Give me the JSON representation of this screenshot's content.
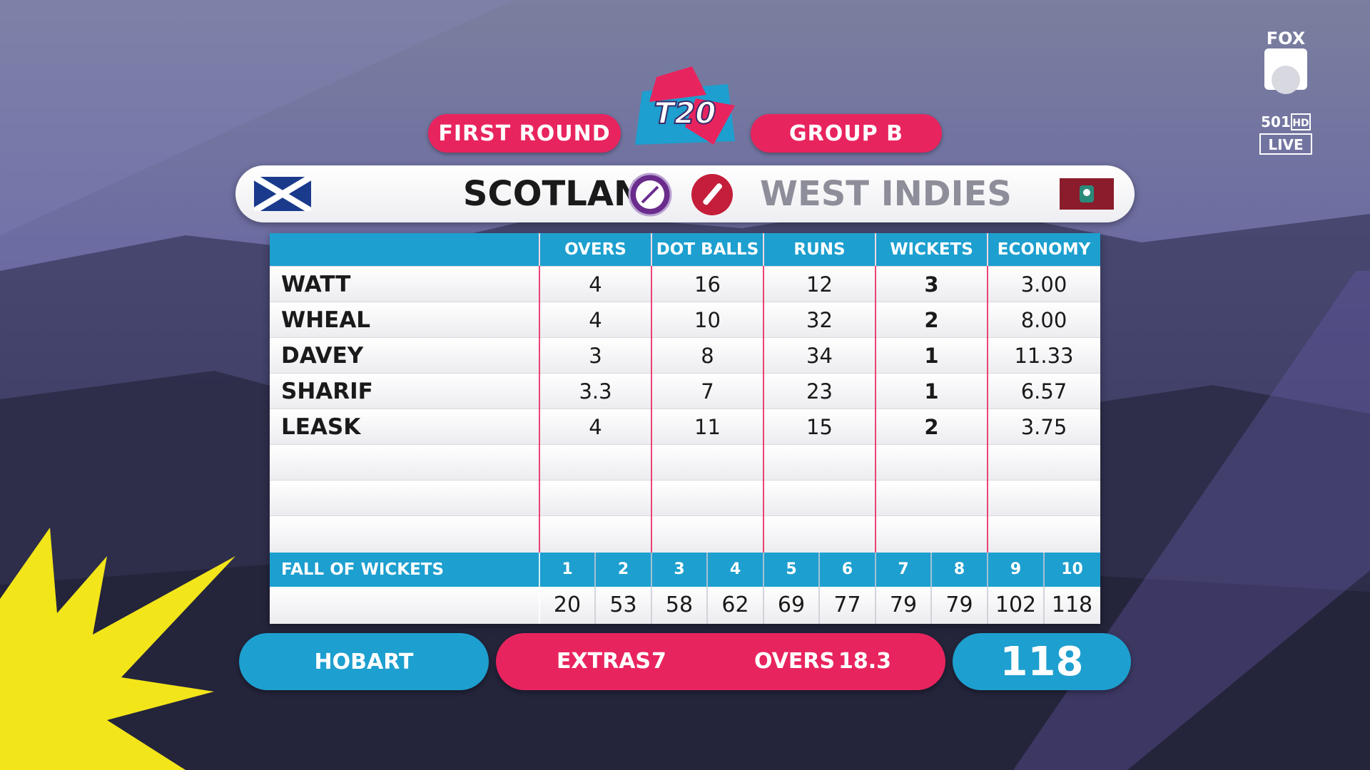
{
  "header": {
    "round": "FIRST ROUND",
    "group": "GROUP B",
    "logo_text": "T20"
  },
  "teams": {
    "home": "SCOTLAND",
    "away": "WEST INDIES"
  },
  "table": {
    "columns": [
      "OVERS",
      "DOT BALLS",
      "RUNS",
      "WICKETS",
      "ECONOMY"
    ],
    "rows": [
      {
        "name": "WATT",
        "overs": "4",
        "dot_balls": "16",
        "runs": "12",
        "wickets": "3",
        "economy": "3.00"
      },
      {
        "name": "WHEAL",
        "overs": "4",
        "dot_balls": "10",
        "runs": "32",
        "wickets": "2",
        "economy": "8.00"
      },
      {
        "name": "DAVEY",
        "overs": "3",
        "dot_balls": "8",
        "runs": "34",
        "wickets": "1",
        "economy": "11.33"
      },
      {
        "name": "SHARIF",
        "overs": "3.3",
        "dot_balls": "7",
        "runs": "23",
        "wickets": "1",
        "economy": "6.57"
      },
      {
        "name": "LEASK",
        "overs": "4",
        "dot_balls": "11",
        "runs": "15",
        "wickets": "2",
        "economy": "3.75"
      }
    ]
  },
  "fall_of_wickets": {
    "label": "FALL OF WICKETS",
    "numbers": [
      "1",
      "2",
      "3",
      "4",
      "5",
      "6",
      "7",
      "8",
      "9",
      "10"
    ],
    "scores": [
      "20",
      "53",
      "58",
      "62",
      "69",
      "77",
      "79",
      "79",
      "102",
      "118"
    ]
  },
  "footer": {
    "venue": "HOBART",
    "extras_label": "EXTRAS",
    "extras_value": "7",
    "overs_label": "OVERS",
    "overs_value": "18.3",
    "total": "118"
  },
  "broadcaster": {
    "logo_text": "FOX",
    "channel": "501",
    "hd": "HD",
    "live": "LIVE"
  },
  "colors": {
    "accent_pink": "#e8245e",
    "accent_blue": "#1d9fcf",
    "burst_yellow": "#f2e51a"
  },
  "icons": [
    "scotland-flag-icon",
    "west-indies-flag-icon",
    "bat-icon",
    "ball-icon",
    "t20-logo-icon",
    "fox-cricket-logo-icon"
  ]
}
